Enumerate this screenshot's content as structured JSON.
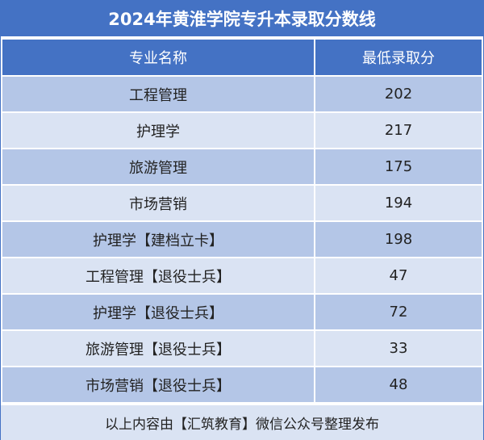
{
  "header": {
    "title": "2024年黄淮学院专升本录取分数线"
  },
  "table": {
    "columns": [
      "专业名称",
      "最低录取分"
    ],
    "rows": [
      [
        "工程管理",
        202
      ],
      [
        "护理学",
        217
      ],
      [
        "旅游管理",
        175
      ],
      [
        "市场营销",
        194
      ],
      [
        "护理学【建档立卡】",
        198
      ],
      [
        "工程管理【退役士兵】",
        47
      ],
      [
        "护理学【退役士兵】",
        72
      ],
      [
        "旅游管理【退役士兵】",
        33
      ],
      [
        "市场营销【退役士兵】",
        48
      ]
    ]
  },
  "footer": {
    "text": "以上内容由【汇筑教育】微信公众号整理发布"
  }
}
